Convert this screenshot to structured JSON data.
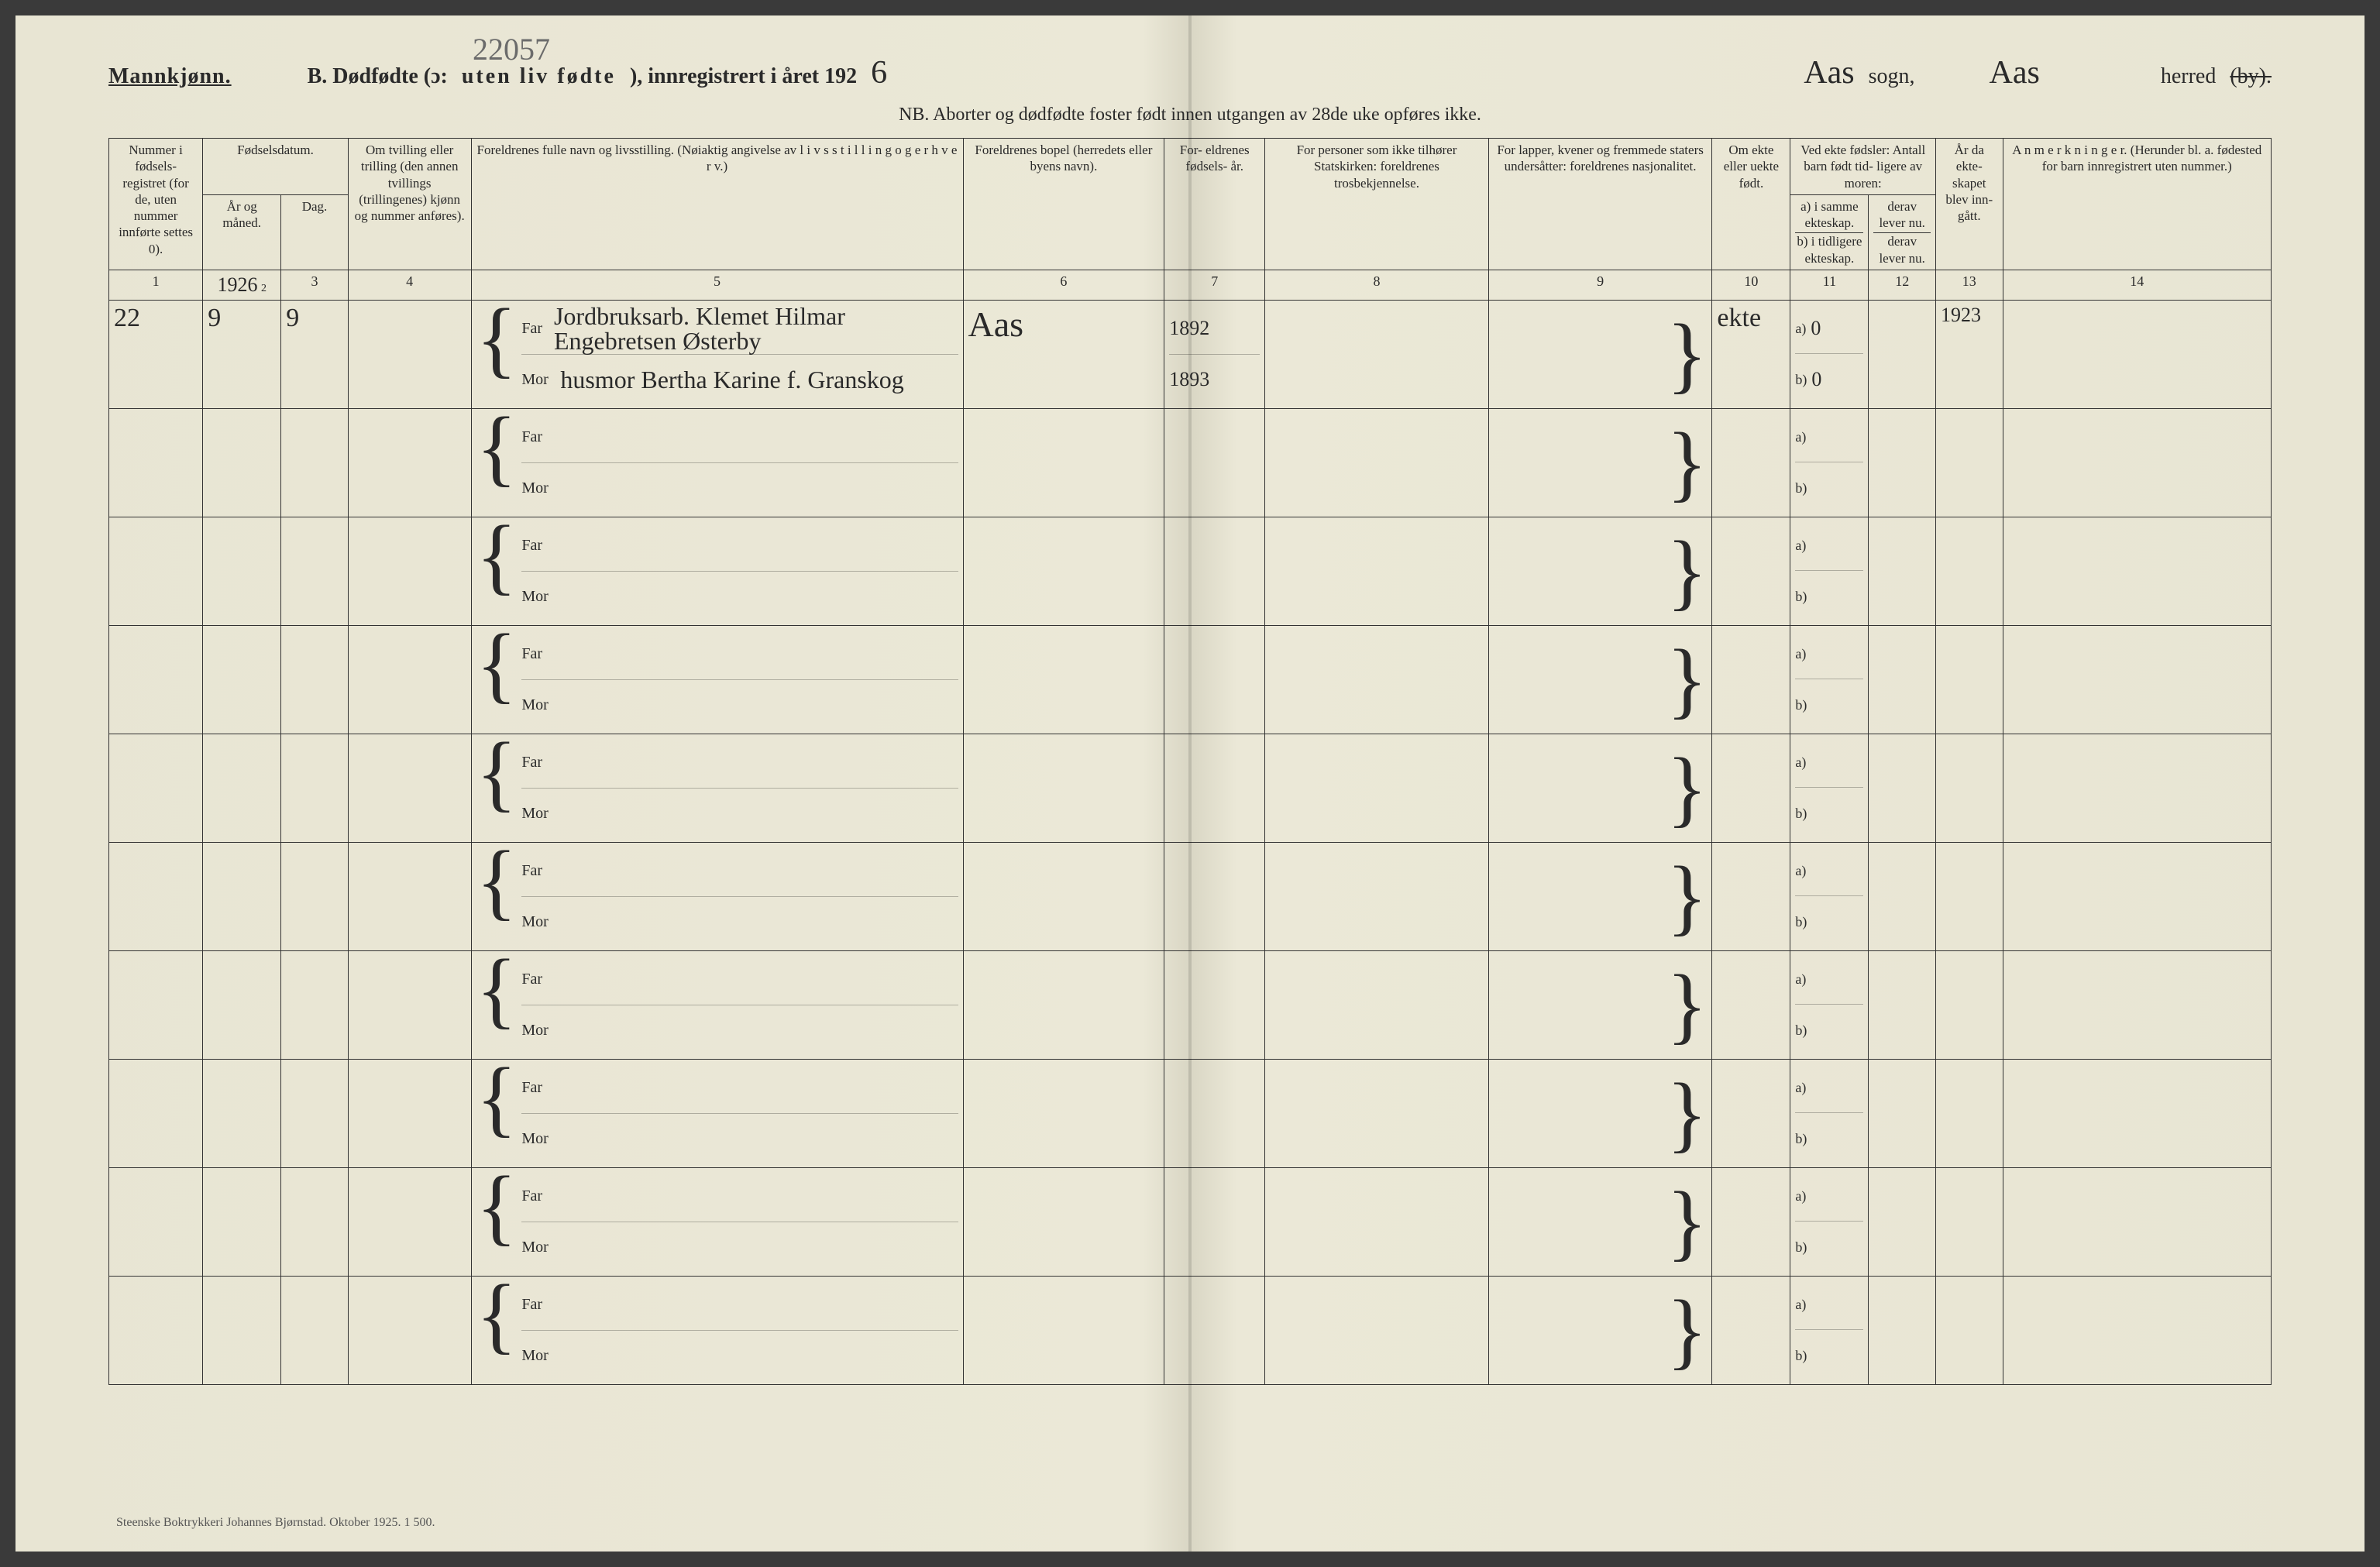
{
  "header": {
    "mannkjonn": "Mannkjønn.",
    "pencil_number": "22057",
    "title_prefix": "B.  Dødfødte (ɔ:",
    "title_spaced": "uten liv fødte",
    "title_suffix": "), innregistrert i året 192",
    "year_digit": "6",
    "sogn_value": "Aas",
    "sogn_label": "sogn,",
    "herred_value": "Aas",
    "herred_label": "herred",
    "by_struck": "(by).",
    "nb": "NB.  Aborter og dødfødte foster født innen utgangen av 28de uke opføres ikke."
  },
  "columns": {
    "c1": "Nummer i fødsels- registret (for de, uten nummer innførte settes 0).",
    "c2_group": "Fødselsdatum.",
    "c2": "År og måned.",
    "c3": "Dag.",
    "c4": "Om tvilling eller trilling (den annen tvillings (trillingenes) kjønn og nummer anføres).",
    "c5": "Foreldrenes fulle navn og livsstilling. (Nøiaktig angivelse av  l i v s s t i l l i n g  o g  e r h v e r v.)",
    "c6": "Foreldrenes bopel (herredets eller byens navn).",
    "c7": "For- eldrenes fødsels- år.",
    "c8": "For personer som ikke tilhører Statskirken: foreldrenes trosbekjennelse.",
    "c9": "For lapper, kvener og fremmede staters undersåtter: foreldrenes nasjonalitet.",
    "c10": "Om ekte eller uekte født.",
    "c11_group": "Ved ekte fødsler: Antall barn født tid- ligere av moren:",
    "c11a": "a) i samme ekteskap.",
    "c11b": "b) i tidligere ekteskap.",
    "c12a": "derav lever nu.",
    "c12b": "derav lever nu.",
    "c13": "År da ekte- skapet blev inn- gått.",
    "c14": "A n m e r k n i n g e r. (Herunder bl. a. fødested for barn innregistrert uten nummer.)"
  },
  "colnums": [
    "1",
    "2",
    "3",
    "4",
    "5",
    "6",
    "7",
    "8",
    "9",
    "10",
    "11",
    "12",
    "13",
    "14"
  ],
  "far_label": "Far",
  "mor_label": "Mor",
  "a_label": "a)",
  "b_label": "b)",
  "row1": {
    "number": "22",
    "year_header": "1926",
    "month": "9",
    "day": "9",
    "far_text": "Jordbruksarb. Klemet Hilmar Engebretsen Østerby",
    "mor_text": "husmor Bertha Karine f. Granskog",
    "bopel": "Aas",
    "far_year": "1892",
    "mor_year": "1893",
    "ekte": "ekte",
    "a_val": "0",
    "b_val": "0",
    "marriage_year": "1923"
  },
  "footer": "Steenske Boktrykkeri Johannes Bjørnstad.   Oktober 1925.   1 500."
}
